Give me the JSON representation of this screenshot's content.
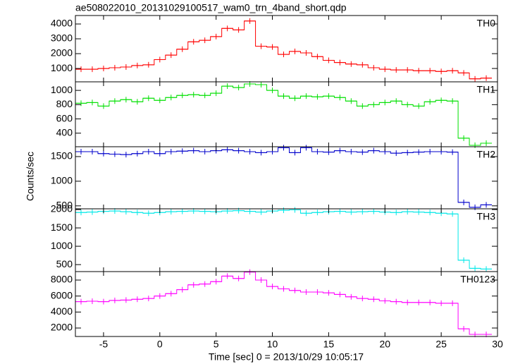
{
  "chart_data": {
    "type": "line",
    "title": "ae508022010_20131029100517_wam0_trn_4band_short.qdp",
    "xlabel": "Time [sec] 0 = 2013/10/29 10:05:17",
    "ylabel": "Counts/sec",
    "xlim": [
      -7.5,
      30
    ],
    "xticks": [
      -5,
      0,
      5,
      10,
      15,
      20,
      25,
      30
    ],
    "x": [
      -7,
      -6,
      -5,
      -4,
      -3,
      -2,
      -1,
      0,
      1,
      2,
      3,
      4,
      5,
      6,
      7,
      8,
      9,
      10,
      11,
      12,
      13,
      14,
      15,
      16,
      17,
      18,
      19,
      20,
      21,
      22,
      23,
      24,
      25,
      26,
      27,
      28,
      29
    ],
    "series": [
      {
        "name": "TH0",
        "color": "#ff0000",
        "ylim": [
          100,
          4570
        ],
        "yticks": [
          1000,
          2000,
          3000,
          4000
        ],
        "values": [
          950,
          950,
          1000,
          1050,
          1100,
          1200,
          1250,
          1600,
          1900,
          2300,
          2800,
          2900,
          3150,
          3700,
          3600,
          4200,
          2500,
          2450,
          1950,
          2150,
          2050,
          1800,
          1550,
          1400,
          1300,
          1250,
          1050,
          950,
          900,
          900,
          850,
          850,
          800,
          850,
          700,
          300,
          350
        ]
      },
      {
        "name": "TH1",
        "color": "#00e000",
        "ylim": [
          210,
          1120
        ],
        "yticks": [
          400,
          600,
          800,
          1000
        ],
        "values": [
          820,
          830,
          780,
          850,
          870,
          840,
          890,
          860,
          900,
          930,
          940,
          930,
          960,
          1060,
          1040,
          1090,
          1080,
          1000,
          920,
          890,
          920,
          910,
          920,
          900,
          850,
          780,
          800,
          830,
          850,
          800,
          780,
          840,
          860,
          850,
          330,
          230,
          260
        ]
      },
      {
        "name": "TH2",
        "color": "#0000cc",
        "ylim": [
          440,
          1700
        ],
        "yticks": [
          500,
          1000,
          1500
        ],
        "values": [
          1600,
          1600,
          1560,
          1550,
          1540,
          1560,
          1600,
          1560,
          1600,
          1610,
          1620,
          1600,
          1620,
          1640,
          1620,
          1600,
          1580,
          1600,
          1680,
          1580,
          1680,
          1600,
          1590,
          1620,
          1600,
          1590,
          1620,
          1600,
          1570,
          1580,
          1590,
          1600,
          1600,
          1590,
          570,
          470,
          520
        ]
      },
      {
        "name": "TH3",
        "color": "#00e8e8",
        "ylim": [
          310,
          2020
        ],
        "yticks": [
          500,
          1000,
          1500,
          2000
        ],
        "values": [
          1920,
          1930,
          1950,
          1960,
          1940,
          1920,
          1900,
          1920,
          1940,
          1950,
          1960,
          1950,
          1940,
          1960,
          1970,
          1950,
          1930,
          1960,
          1980,
          1990,
          1900,
          1920,
          1940,
          1950,
          1930,
          1940,
          1950,
          1930,
          1920,
          1940,
          1930,
          1920,
          1900,
          1880,
          620,
          400,
          380
        ]
      },
      {
        "name": "TH0123",
        "color": "#ff00ff",
        "ylim": [
          940,
          9060
        ],
        "yticks": [
          2000,
          4000,
          6000,
          8000
        ],
        "values": [
          5300,
          5350,
          5300,
          5450,
          5500,
          5600,
          5700,
          6000,
          6300,
          6800,
          7400,
          7500,
          7800,
          8500,
          8200,
          9000,
          8000,
          7200,
          6900,
          6700,
          6500,
          6500,
          6400,
          6200,
          5900,
          5700,
          5600,
          5400,
          5300,
          5200,
          5200,
          5200,
          5100,
          5100,
          1900,
          1200,
          1200
        ]
      }
    ]
  }
}
